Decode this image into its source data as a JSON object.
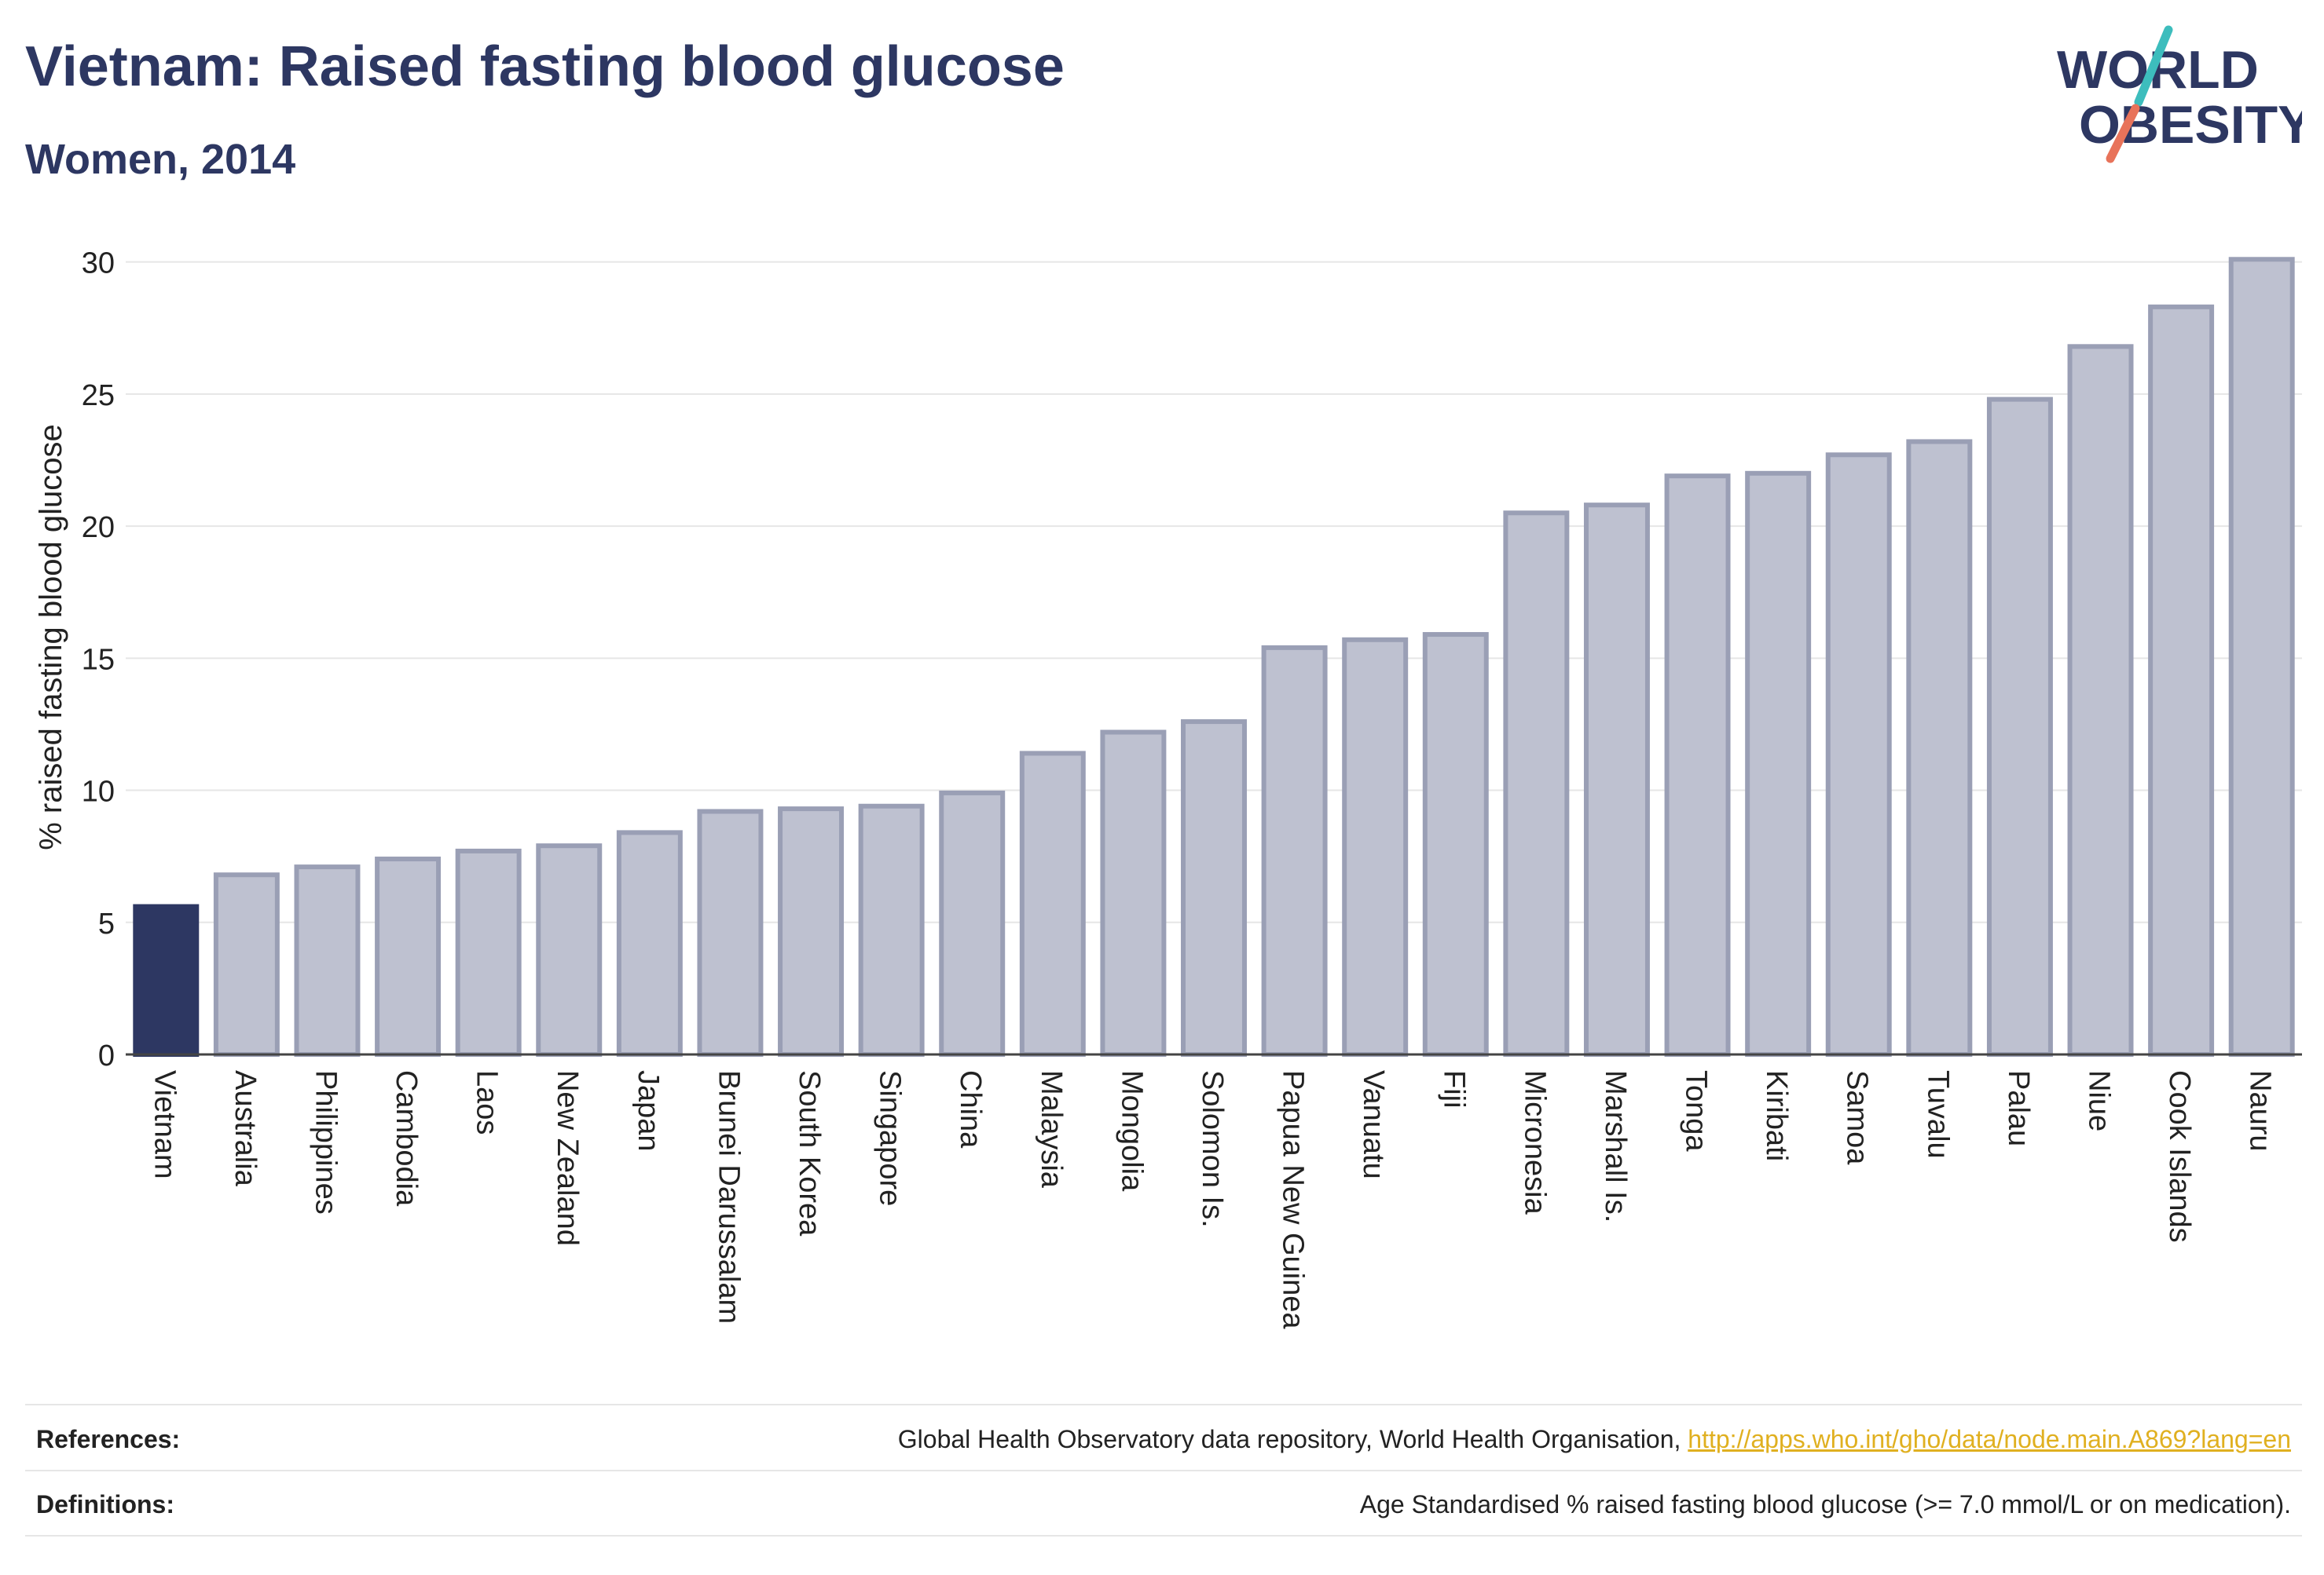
{
  "header": {
    "title": "Vietnam: Raised fasting blood glucose",
    "subtitle": "Women, 2014"
  },
  "logo": {
    "line1": "WORLD",
    "line2": "OBESITY"
  },
  "colors": {
    "highlight": "#2d3762",
    "bar_fill": "#bec1d0",
    "bar_stroke": "#9a9fb5",
    "logo_teal": "#3dbdbd",
    "logo_coral": "#e8735a",
    "link": "#e0b020"
  },
  "chart_data": {
    "type": "bar",
    "title": "Vietnam: Raised fasting blood glucose",
    "subtitle": "Women, 2014",
    "xlabel": "",
    "ylabel": "% raised fasting blood glucose",
    "ylim": [
      0,
      31
    ],
    "yticks": [
      0,
      5,
      10,
      15,
      20,
      25,
      30
    ],
    "grid": true,
    "highlight_category": "Vietnam",
    "categories": [
      "Vietnam",
      "Australia",
      "Philippines",
      "Cambodia",
      "Laos",
      "New Zealand",
      "Japan",
      "Brunei Darussalam",
      "South Korea",
      "Singapore",
      "China",
      "Malaysia",
      "Mongolia",
      "Solomon Is.",
      "Papua New Guinea",
      "Vanuatu",
      "Fiji",
      "Micronesia",
      "Marshall Is.",
      "Tonga",
      "Kiribati",
      "Samoa",
      "Tuvalu",
      "Palau",
      "Niue",
      "Cook Islands",
      "Nauru"
    ],
    "values": [
      5.6,
      6.8,
      7.1,
      7.4,
      7.7,
      7.9,
      8.4,
      9.2,
      9.3,
      9.4,
      9.9,
      11.4,
      12.2,
      12.6,
      15.4,
      15.7,
      15.9,
      20.5,
      20.8,
      21.9,
      22.0,
      22.7,
      23.2,
      24.8,
      26.8,
      28.3,
      30.1
    ]
  },
  "footer": {
    "references_label": "References:",
    "references_text": "Global Health Observatory data repository, World Health Organisation, ",
    "references_link": "http://apps.who.int/gho/data/node.main.A869?lang=en",
    "definitions_label": "Definitions:",
    "definitions_text": "Age Standardised % raised fasting blood glucose (>= 7.0 mmol/L or on medication)."
  }
}
